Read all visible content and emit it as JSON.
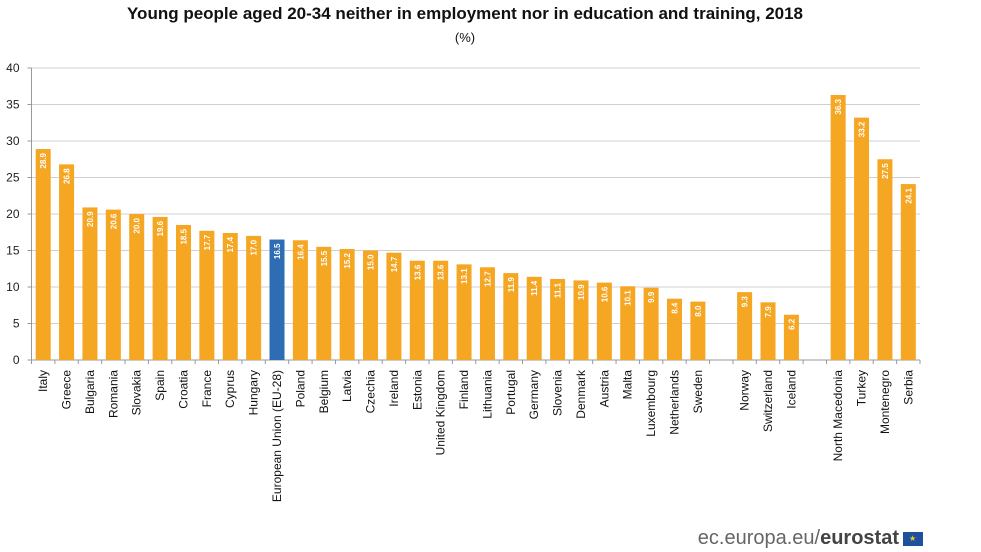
{
  "chart_data": {
    "type": "bar",
    "title": "Young people aged 20-34 neither in employment nor in education and training, 2018",
    "subtitle": "(%)",
    "xlabel": "",
    "ylabel": "",
    "ylim": [
      0,
      40
    ],
    "yticks": [
      0,
      5,
      10,
      15,
      20,
      25,
      30,
      35,
      40
    ],
    "grid": true,
    "colors": {
      "default": "#F5A623",
      "highlight": "#2E6DB4"
    },
    "groups": [
      {
        "categories": [
          "Italy",
          "Greece",
          "Bulgaria",
          "Romania",
          "Slovakia",
          "Spain",
          "Croatia",
          "France",
          "Cyprus",
          "Hungary",
          "European Union (EU-28)",
          "Poland",
          "Belgium",
          "Latvia",
          "Czechia",
          "Ireland",
          "Estonia",
          "United Kingdom",
          "Finland",
          "Lithuania",
          "Portugal",
          "Germany",
          "Slovenia",
          "Denmark",
          "Austria",
          "Malta",
          "Luxembourg",
          "Netherlands",
          "Sweden"
        ],
        "values": [
          28.9,
          26.8,
          20.9,
          20.6,
          20.0,
          19.6,
          18.5,
          17.7,
          17.4,
          17.0,
          16.5,
          16.4,
          15.5,
          15.2,
          15.0,
          14.7,
          13.6,
          13.6,
          13.1,
          12.7,
          11.9,
          11.4,
          11.1,
          10.9,
          10.6,
          10.1,
          9.9,
          8.4,
          8.0
        ]
      },
      {
        "categories": [
          "Norway",
          "Switzerland",
          "Iceland"
        ],
        "values": [
          9.3,
          7.9,
          6.2
        ]
      },
      {
        "categories": [
          "North Macedonia",
          "Turkey",
          "Montenegro",
          "Serbia"
        ],
        "values": [
          36.3,
          33.2,
          27.5,
          24.1
        ]
      }
    ],
    "highlight": "European Union (EU-28)"
  },
  "logo": {
    "prefix": "ec.europa.eu/",
    "brand": "eurostat"
  }
}
